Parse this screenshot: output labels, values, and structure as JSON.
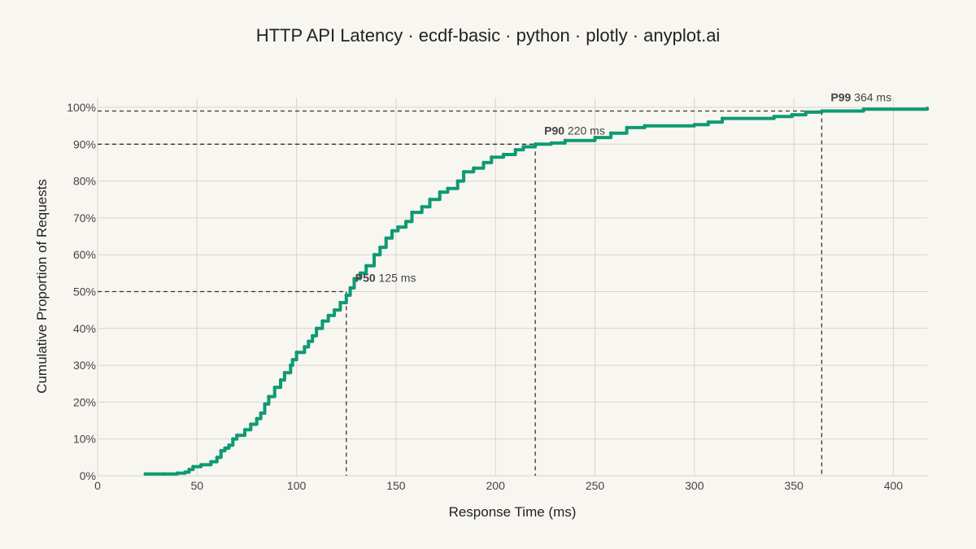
{
  "chart_data": {
    "type": "line",
    "title": "HTTP API Latency · ecdf-basic · python · plotly · anyplot.ai",
    "xlabel": "Response Time (ms)",
    "ylabel": "Cumulative Proportion of Requests",
    "xlim": [
      0,
      417
    ],
    "ylim": [
      0,
      1
    ],
    "x_ticks": [
      0,
      50,
      100,
      150,
      200,
      250,
      300,
      350,
      400
    ],
    "x_tick_labels": [
      "0",
      "50",
      "100",
      "150",
      "200",
      "250",
      "300",
      "350",
      "400"
    ],
    "y_ticks": [
      0,
      0.1,
      0.2,
      0.3,
      0.4,
      0.5,
      0.6,
      0.7,
      0.8,
      0.9,
      1.0
    ],
    "y_tick_labels": [
      "0%",
      "10%",
      "20%",
      "30%",
      "40%",
      "50%",
      "60%",
      "70%",
      "80%",
      "90%",
      "100%"
    ],
    "grid": true,
    "legend": "none",
    "series": [
      {
        "color": "#0E9A73",
        "points": [
          [
            24,
            0.005
          ],
          [
            33,
            0.005
          ],
          [
            40,
            0.007
          ],
          [
            44,
            0.01
          ],
          [
            46,
            0.017
          ],
          [
            48,
            0.025
          ],
          [
            52,
            0.03
          ],
          [
            57,
            0.038
          ],
          [
            60,
            0.05
          ],
          [
            62,
            0.068
          ],
          [
            64,
            0.075
          ],
          [
            66,
            0.083
          ],
          [
            68,
            0.1
          ],
          [
            70,
            0.11
          ],
          [
            74,
            0.125
          ],
          [
            77,
            0.14
          ],
          [
            80,
            0.155
          ],
          [
            82,
            0.17
          ],
          [
            84,
            0.195
          ],
          [
            86,
            0.215
          ],
          [
            89,
            0.24
          ],
          [
            92,
            0.26
          ],
          [
            94,
            0.28
          ],
          [
            97,
            0.3
          ],
          [
            98,
            0.315
          ],
          [
            100,
            0.335
          ],
          [
            104,
            0.35
          ],
          [
            106,
            0.365
          ],
          [
            108,
            0.38
          ],
          [
            110,
            0.4
          ],
          [
            113,
            0.42
          ],
          [
            116,
            0.435
          ],
          [
            119,
            0.45
          ],
          [
            122,
            0.47
          ],
          [
            125,
            0.49
          ],
          [
            127,
            0.51
          ],
          [
            129,
            0.535
          ],
          [
            132,
            0.55
          ],
          [
            135,
            0.57
          ],
          [
            139,
            0.6
          ],
          [
            142,
            0.62
          ],
          [
            145,
            0.645
          ],
          [
            148,
            0.665
          ],
          [
            151,
            0.675
          ],
          [
            155,
            0.69
          ],
          [
            158,
            0.715
          ],
          [
            163,
            0.73
          ],
          [
            167,
            0.75
          ],
          [
            172,
            0.77
          ],
          [
            176,
            0.78
          ],
          [
            181,
            0.8
          ],
          [
            184,
            0.825
          ],
          [
            189,
            0.835
          ],
          [
            194,
            0.85
          ],
          [
            198,
            0.865
          ],
          [
            204,
            0.872
          ],
          [
            210,
            0.885
          ],
          [
            214,
            0.893
          ],
          [
            220,
            0.9
          ],
          [
            228,
            0.903
          ],
          [
            235,
            0.91
          ],
          [
            250,
            0.918
          ],
          [
            258,
            0.93
          ],
          [
            266,
            0.945
          ],
          [
            275,
            0.95
          ],
          [
            300,
            0.953
          ],
          [
            307,
            0.96
          ],
          [
            314,
            0.97
          ],
          [
            340,
            0.975
          ],
          [
            349,
            0.98
          ],
          [
            356,
            0.987
          ],
          [
            364,
            0.99
          ],
          [
            385,
            0.995
          ],
          [
            417,
            0.997
          ]
        ]
      }
    ],
    "percentiles": [
      {
        "name": "P50",
        "label": "125 ms",
        "x": 125,
        "y": 0.5
      },
      {
        "name": "P90",
        "label": "220 ms",
        "x": 220,
        "y": 0.9
      },
      {
        "name": "P99",
        "label": "364 ms",
        "x": 364,
        "y": 0.99
      }
    ]
  }
}
